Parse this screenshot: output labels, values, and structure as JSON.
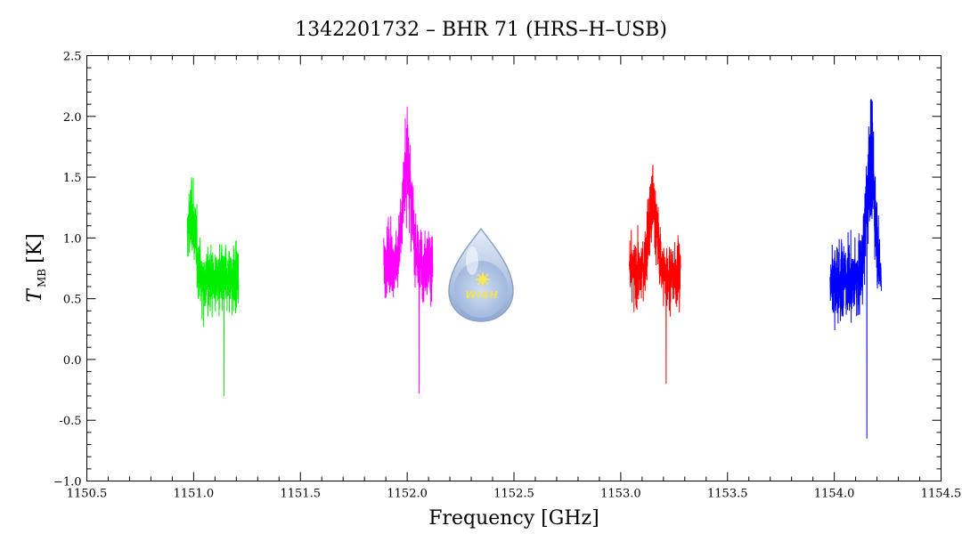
{
  "chart_data": {
    "type": "line",
    "title": "1342201732 – BHR 71 (HRS–H–USB)",
    "xlabel": "Frequency [GHz]",
    "ylabel_main": "T",
    "ylabel_sub": "MB",
    "ylabel_unit": "[K]",
    "xlim": [
      1150.5,
      1154.5
    ],
    "ylim": [
      -1.0,
      2.5
    ],
    "xticks": [
      1150.5,
      1151.0,
      1151.5,
      1152.0,
      1152.5,
      1153.0,
      1153.5,
      1154.0,
      1154.5
    ],
    "xtick_labels": [
      "1150.5",
      "1151.0",
      "1151.5",
      "1152.0",
      "1152.5",
      "1153.0",
      "1153.5",
      "1154.0",
      "1154.5"
    ],
    "yticks": [
      -1.0,
      -0.5,
      0.0,
      0.5,
      1.0,
      1.5,
      2.0,
      2.5
    ],
    "ytick_labels": [
      "−1.0",
      "-0.5",
      "0.0",
      "0.5",
      "1.0",
      "1.5",
      "2.0",
      "2.5"
    ],
    "grid": false,
    "series": [
      {
        "color": "#00ee00",
        "x_range": [
          1150.97,
          1151.21
        ],
        "baseline": 0.65,
        "noise": 0.35,
        "min": -0.3,
        "max": 1.5,
        "peak_at": 1150.99,
        "peak_value": 1.5
      },
      {
        "color": "#ff00ff",
        "x_range": [
          1151.89,
          1152.12
        ],
        "baseline": 0.8,
        "noise": 0.35,
        "min": -0.28,
        "max": 2.08,
        "peak_at": 1152.0,
        "peak_value": 2.08
      },
      {
        "color": "#ff0000",
        "x_range": [
          1153.04,
          1153.28
        ],
        "baseline": 0.7,
        "noise": 0.33,
        "min": -0.2,
        "max": 1.6,
        "peak_at": 1153.15,
        "peak_value": 1.6
      },
      {
        "color": "#0000ff",
        "x_range": [
          1153.98,
          1154.22
        ],
        "baseline": 0.65,
        "noise": 0.4,
        "min": -0.65,
        "max": 2.14,
        "peak_at": 1154.17,
        "peak_value": 2.14
      }
    ]
  },
  "logo": {
    "text": "WISH"
  }
}
